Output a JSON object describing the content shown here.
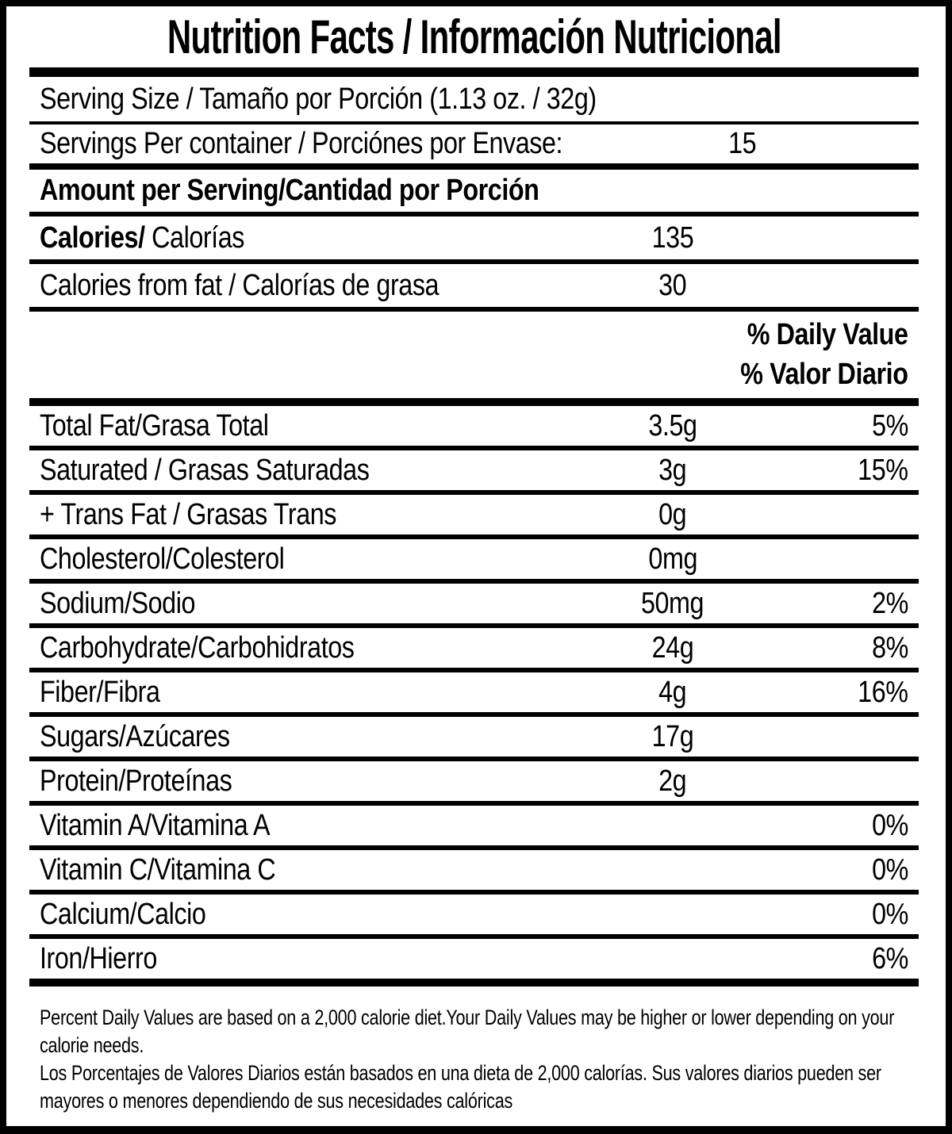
{
  "colors": {
    "ink": "#000000",
    "paper": "#ffffff"
  },
  "label": {
    "title": "Nutrition Facts / Información Nutricional",
    "serving_size_label": "Serving Size / Tamaño por Porción (1.13 oz. / 32g)",
    "servings_per_container_label": "Servings Per container / Porciónes por Envase:",
    "servings_per_container_value": "15",
    "amount_per_serving_heading": "Amount per Serving/Cantidad por Porción",
    "calories_label_en": "Calories/",
    "calories_label_es": "Calorías",
    "calories_value": "135",
    "calories_from_fat_label": "Calories from fat / Calorías de grasa",
    "calories_from_fat_value": "30",
    "daily_value_heading_en": "% Daily Value",
    "daily_value_heading_es": "% Valor Diario",
    "nutrients": [
      {
        "label": "Total Fat/Grasa Total",
        "amount": "3.5g",
        "dv": "5%"
      },
      {
        "label": "Saturated / Grasas Saturadas",
        "amount": "3g",
        "dv": "15%"
      },
      {
        "label": "+ Trans Fat / Grasas Trans",
        "amount": "0g",
        "dv": ""
      },
      {
        "label": "Cholesterol/Colesterol",
        "amount": "0mg",
        "dv": ""
      },
      {
        "label": "Sodium/Sodio",
        "amount": "50mg",
        "dv": "2%"
      },
      {
        "label": "Carbohydrate/Carbohidratos",
        "amount": "24g",
        "dv": "8%"
      },
      {
        "label": "Fiber/Fibra",
        "amount": "4g",
        "dv": "16%"
      },
      {
        "label": "Sugars/Azúcares",
        "amount": "17g",
        "dv": ""
      },
      {
        "label": "Protein/Proteínas",
        "amount": "2g",
        "dv": ""
      },
      {
        "label": "Vitamin A/Vitamina A",
        "amount": "",
        "dv": "0%"
      },
      {
        "label": "Vitamin C/Vitamina C",
        "amount": "",
        "dv": "0%"
      },
      {
        "label": "Calcium/Calcio",
        "amount": "",
        "dv": "0%"
      },
      {
        "label": "Iron/Hierro",
        "amount": "",
        "dv": "6%"
      }
    ],
    "footnote_en": "Percent Daily Values are based on a 2,000 calorie diet.Your Daily Values may be higher or lower depending on your calorie needs.",
    "footnote_es": "Los Porcentajes de Valores Diarios están basados en una dieta de 2,000 calorías. Sus valores diarios pueden ser mayores o menores dependiendo de sus necesidades calóricas"
  }
}
